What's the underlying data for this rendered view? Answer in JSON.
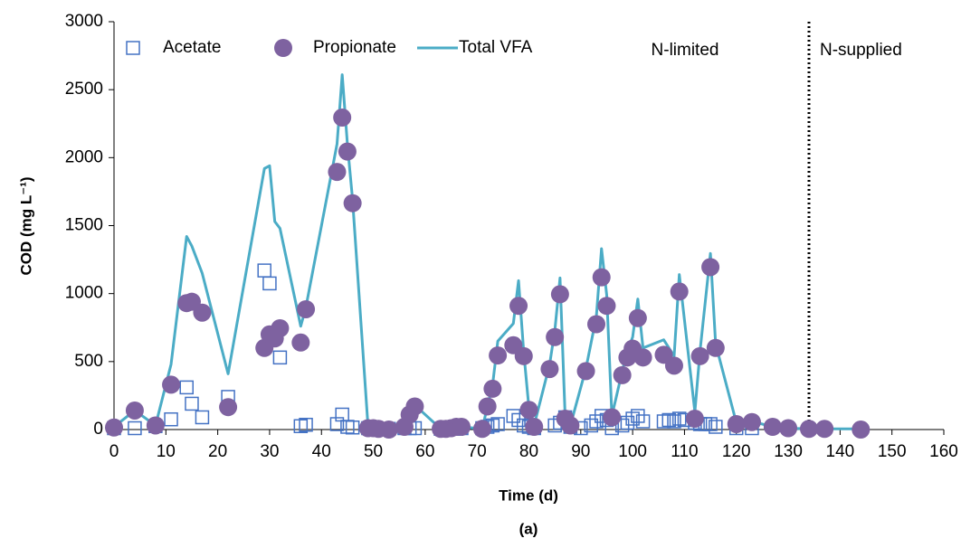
{
  "chart_data": {
    "type": "scatter",
    "xlabel": "Time (d)",
    "ylabel": "COD (mg L⁻¹)",
    "caption": "(a)",
    "annotations": [
      "N-limited",
      "N-supplied"
    ],
    "divider_x": 134,
    "xlim": [
      0,
      160
    ],
    "xticks": [
      0,
      10,
      20,
      30,
      40,
      50,
      60,
      70,
      80,
      90,
      100,
      110,
      120,
      130,
      140,
      150,
      160
    ],
    "ylim": [
      0,
      3000
    ],
    "yticks": [
      0,
      500,
      1000,
      1500,
      2000,
      2500,
      3000
    ],
    "grid": false,
    "legend": "top-left",
    "series": [
      {
        "name": "Acetate",
        "color": "#4472c4",
        "marker": "square",
        "x": [
          0,
          4,
          8,
          11,
          14,
          15,
          17,
          22,
          29,
          30,
          32,
          36,
          37,
          43,
          44,
          45,
          46,
          49,
          50,
          51,
          53,
          56,
          57,
          58,
          63,
          64,
          65,
          66,
          67,
          71,
          72,
          73,
          74,
          77,
          78,
          79,
          80,
          81,
          85,
          86,
          87,
          88,
          90,
          92,
          93,
          94,
          95,
          96,
          98,
          99,
          100,
          101,
          102,
          106,
          107,
          108,
          109,
          110,
          112,
          113,
          114,
          115,
          116,
          120,
          123
        ],
        "values": [
          10,
          10,
          25,
          75,
          310,
          190,
          90,
          240,
          1170,
          1075,
          530,
          25,
          35,
          40,
          110,
          20,
          15,
          10,
          5,
          5,
          5,
          10,
          10,
          10,
          5,
          5,
          5,
          5,
          10,
          10,
          20,
          30,
          40,
          100,
          70,
          30,
          20,
          10,
          30,
          50,
          90,
          20,
          10,
          30,
          60,
          100,
          70,
          10,
          30,
          50,
          80,
          100,
          60,
          60,
          70,
          60,
          80,
          70,
          50,
          40,
          40,
          40,
          20,
          10,
          10
        ]
      },
      {
        "name": "Propionate",
        "color": "#7e62a0",
        "marker": "circle",
        "x": [
          0,
          4,
          8,
          11,
          14,
          15,
          17,
          22,
          29,
          30,
          31,
          32,
          36,
          37,
          43,
          44,
          45,
          46,
          49,
          50,
          51,
          53,
          56,
          57,
          58,
          63,
          64,
          65,
          66,
          67,
          71,
          72,
          73,
          74,
          77,
          78,
          79,
          80,
          81,
          84,
          85,
          86,
          87,
          88,
          91,
          93,
          94,
          95,
          96,
          98,
          99,
          100,
          101,
          102,
          106,
          108,
          109,
          112,
          113,
          115,
          116,
          120,
          123,
          127,
          130,
          134,
          137,
          144
        ],
        "values": [
          15,
          140,
          30,
          330,
          930,
          940,
          860,
          165,
          600,
          700,
          670,
          745,
          640,
          885,
          1895,
          2295,
          2045,
          1665,
          10,
          10,
          5,
          0,
          20,
          110,
          170,
          5,
          5,
          10,
          20,
          20,
          5,
          170,
          300,
          545,
          620,
          910,
          540,
          145,
          20,
          445,
          680,
          995,
          80,
          30,
          430,
          775,
          1120,
          910,
          90,
          400,
          530,
          595,
          820,
          530,
          550,
          470,
          1015,
          80,
          540,
          1195,
          600,
          40,
          55,
          20,
          10,
          5,
          5,
          0
        ]
      },
      {
        "name": "Total VFA",
        "color": "#4bacc6",
        "marker": "line",
        "x": [
          0,
          4,
          8,
          11,
          14,
          15,
          17,
          22,
          29,
          30,
          31,
          32,
          36,
          37,
          43,
          44,
          45,
          46,
          49,
          50,
          53,
          56,
          57,
          58,
          63,
          66,
          67,
          71,
          72,
          73,
          74,
          77,
          78,
          79,
          80,
          81,
          84,
          85,
          86,
          87,
          88,
          91,
          93,
          94,
          95,
          96,
          98,
          99,
          100,
          101,
          102,
          106,
          108,
          109,
          112,
          113,
          115,
          116,
          120,
          123,
          127,
          130,
          134,
          137,
          144
        ],
        "values": [
          20,
          140,
          30,
          480,
          1420,
          1350,
          1150,
          410,
          1920,
          1940,
          1530,
          1480,
          760,
          900,
          2100,
          2610,
          2100,
          1690,
          10,
          10,
          5,
          20,
          110,
          180,
          5,
          20,
          20,
          5,
          170,
          330,
          650,
          780,
          1095,
          570,
          160,
          30,
          480,
          730,
          1115,
          80,
          30,
          450,
          830,
          1330,
          990,
          100,
          430,
          580,
          680,
          960,
          600,
          660,
          540,
          1140,
          130,
          580,
          1295,
          630,
          50,
          60,
          20,
          10,
          5,
          5,
          5
        ]
      }
    ]
  }
}
